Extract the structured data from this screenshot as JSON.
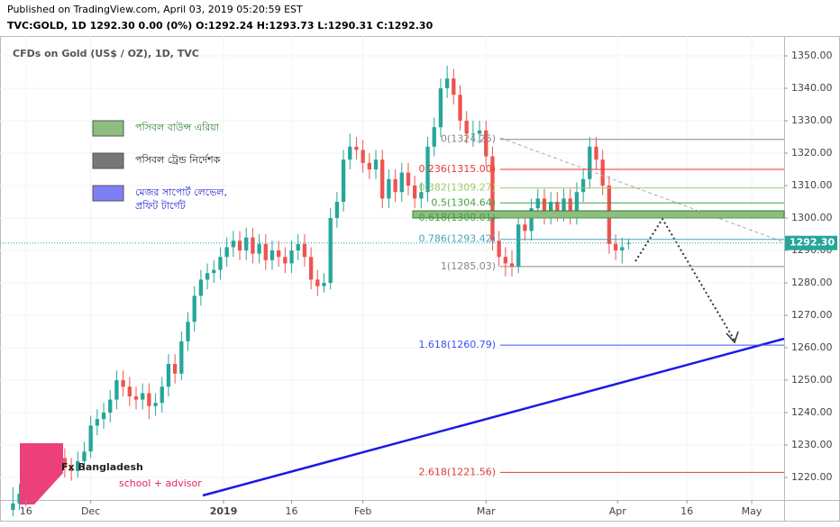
{
  "header": {
    "published": "Published on TradingView.com, April 03, 2019 05:20:59 EST",
    "quote": "TVC:GOLD, 1D  1292.30  0.00 (0%)  O:1292.24  H:1293.73  L:1290.31  C:1292.30"
  },
  "chart_data": {
    "type": "candlestick",
    "title": "CFDs on Gold (US$ / OZ), 1D, TVC",
    "up_color": "#26a69a",
    "down_color": "#ef5350",
    "ohlc": [
      [
        1210,
        1217,
        1208,
        1212
      ],
      [
        1212,
        1218,
        1210,
        1215
      ],
      [
        1215,
        1218,
        1211,
        1214
      ],
      [
        1214,
        1223,
        1212,
        1220
      ],
      [
        1220,
        1225,
        1218,
        1222
      ],
      [
        1222,
        1225,
        1218,
        1221
      ],
      [
        1221,
        1227,
        1219,
        1224
      ],
      [
        1224,
        1229,
        1221,
        1226
      ],
      [
        1226,
        1229,
        1220,
        1223
      ],
      [
        1223,
        1226,
        1219,
        1222
      ],
      [
        1222,
        1228,
        1220,
        1225
      ],
      [
        1225,
        1231,
        1222,
        1228
      ],
      [
        1228,
        1239,
        1226,
        1236
      ],
      [
        1236,
        1241,
        1233,
        1238
      ],
      [
        1238,
        1243,
        1235,
        1240
      ],
      [
        1240,
        1247,
        1237,
        1244
      ],
      [
        1244,
        1253,
        1241,
        1250
      ],
      [
        1250,
        1253,
        1245,
        1248
      ],
      [
        1248,
        1251,
        1242,
        1245
      ],
      [
        1245,
        1248,
        1241,
        1244
      ],
      [
        1244,
        1249,
        1241,
        1246
      ],
      [
        1246,
        1249,
        1238,
        1242
      ],
      [
        1242,
        1246,
        1239,
        1243
      ],
      [
        1243,
        1251,
        1240,
        1248
      ],
      [
        1248,
        1258,
        1245,
        1255
      ],
      [
        1255,
        1258,
        1249,
        1252
      ],
      [
        1252,
        1265,
        1250,
        1262
      ],
      [
        1262,
        1271,
        1259,
        1268
      ],
      [
        1268,
        1279,
        1265,
        1276
      ],
      [
        1276,
        1284,
        1273,
        1281
      ],
      [
        1281,
        1286,
        1278,
        1283
      ],
      [
        1283,
        1287,
        1280,
        1284
      ],
      [
        1284,
        1291,
        1281,
        1288
      ],
      [
        1288,
        1294,
        1285,
        1291
      ],
      [
        1291,
        1296,
        1288,
        1293
      ],
      [
        1293,
        1296,
        1287,
        1290
      ],
      [
        1290,
        1297,
        1287,
        1294
      ],
      [
        1294,
        1297,
        1286,
        1289
      ],
      [
        1289,
        1295,
        1286,
        1292
      ],
      [
        1292,
        1295,
        1284,
        1287
      ],
      [
        1287,
        1293,
        1284,
        1290
      ],
      [
        1290,
        1293,
        1285,
        1288
      ],
      [
        1288,
        1291,
        1283,
        1286
      ],
      [
        1286,
        1293,
        1283,
        1290
      ],
      [
        1290,
        1295,
        1287,
        1292
      ],
      [
        1292,
        1295,
        1285,
        1288
      ],
      [
        1288,
        1291,
        1278,
        1281
      ],
      [
        1281,
        1284,
        1276,
        1279
      ],
      [
        1279,
        1283,
        1277,
        1280
      ],
      [
        1280,
        1303,
        1278,
        1300
      ],
      [
        1300,
        1308,
        1297,
        1305
      ],
      [
        1305,
        1321,
        1302,
        1318
      ],
      [
        1318,
        1326,
        1315,
        1322
      ],
      [
        1322,
        1325,
        1318,
        1321
      ],
      [
        1321,
        1324,
        1314,
        1317
      ],
      [
        1317,
        1320,
        1312,
        1315
      ],
      [
        1315,
        1321,
        1312,
        1318
      ],
      [
        1318,
        1321,
        1303,
        1306
      ],
      [
        1306,
        1315,
        1303,
        1312
      ],
      [
        1312,
        1315,
        1305,
        1308
      ],
      [
        1308,
        1317,
        1305,
        1314
      ],
      [
        1314,
        1317,
        1307,
        1310
      ],
      [
        1310,
        1313,
        1303,
        1306
      ],
      [
        1306,
        1311,
        1303,
        1308
      ],
      [
        1308,
        1325,
        1305,
        1322
      ],
      [
        1322,
        1331,
        1319,
        1328
      ],
      [
        1328,
        1343,
        1325,
        1340
      ],
      [
        1340,
        1347,
        1337,
        1343
      ],
      [
        1343,
        1346,
        1335,
        1338
      ],
      [
        1338,
        1341,
        1327,
        1330
      ],
      [
        1330,
        1333,
        1323,
        1326
      ],
      [
        1326,
        1330,
        1322,
        1326
      ],
      [
        1326,
        1330,
        1323,
        1327
      ],
      [
        1327,
        1330,
        1316,
        1319
      ],
      [
        1319,
        1322,
        1290,
        1293
      ],
      [
        1293,
        1296,
        1285,
        1288
      ],
      [
        1288,
        1291,
        1282,
        1286
      ],
      [
        1286,
        1290,
        1282,
        1285
      ],
      [
        1285,
        1301,
        1283,
        1298
      ],
      [
        1298,
        1301,
        1293,
        1296
      ],
      [
        1296,
        1306,
        1293,
        1303
      ],
      [
        1303,
        1309,
        1300,
        1306
      ],
      [
        1306,
        1309,
        1298,
        1301
      ],
      [
        1301,
        1308,
        1298,
        1305
      ],
      [
        1305,
        1308,
        1299,
        1302
      ],
      [
        1302,
        1309,
        1299,
        1306
      ],
      [
        1306,
        1309,
        1298,
        1301
      ],
      [
        1301,
        1311,
        1298,
        1308
      ],
      [
        1308,
        1315,
        1305,
        1312
      ],
      [
        1312,
        1325,
        1309,
        1322
      ],
      [
        1322,
        1325,
        1315,
        1318
      ],
      [
        1318,
        1321,
        1307,
        1310
      ],
      [
        1310,
        1313,
        1289,
        1292
      ],
      [
        1292,
        1295,
        1287,
        1290
      ],
      [
        1290,
        1294,
        1286,
        1291
      ],
      [
        1292.24,
        1293.73,
        1290.31,
        1292.3
      ]
    ],
    "xlim": [
      -2,
      119
    ],
    "ylim": [
      1213.06,
      1356.11
    ],
    "xticks": [
      {
        "value": 2,
        "label": "16"
      },
      {
        "value": 12,
        "label": "Dec"
      },
      {
        "value": 32.5,
        "label": "2019"
      },
      {
        "value": 43,
        "label": "16"
      },
      {
        "value": 54,
        "label": "Feb"
      },
      {
        "value": 73,
        "label": "Mar"
      },
      {
        "value": 93.3,
        "label": "Apr"
      },
      {
        "value": 104,
        "label": "16"
      },
      {
        "value": 114,
        "label": "May"
      }
    ],
    "yticks": [
      {
        "value": 1220,
        "label": "1220.00"
      },
      {
        "value": 1230,
        "label": "1230.00"
      },
      {
        "value": 1240,
        "label": "1240.00"
      },
      {
        "value": 1250,
        "label": "1250.00"
      },
      {
        "value": 1260,
        "label": "1260.00"
      },
      {
        "value": 1270,
        "label": "1270.00"
      },
      {
        "value": 1280,
        "label": "1280.00"
      },
      {
        "value": 1290,
        "label": "1290.00"
      },
      {
        "value": 1300,
        "label": "1300.00"
      },
      {
        "value": 1310,
        "label": "1310.00"
      },
      {
        "value": 1320,
        "label": "1320.00"
      },
      {
        "value": 1330,
        "label": "1330.00"
      },
      {
        "value": 1340,
        "label": "1340.00"
      },
      {
        "value": 1350,
        "label": "1350.00"
      }
    ],
    "last_price": {
      "value": 1292.3,
      "label": "1292.30"
    },
    "fib_levels": [
      {
        "value": 1324.25,
        "label": "0(1324.25)",
        "color": "#888888"
      },
      {
        "value": 1315,
        "label": "0.236(1315.00)",
        "color": "#e53935"
      },
      {
        "value": 1309.27,
        "label": "0.382(1309.27)",
        "color": "#9ccc65"
      },
      {
        "value": 1304.64,
        "label": "0.5(1304.64)",
        "color": "#43a047"
      },
      {
        "value": 1300.01,
        "label": "0.618(1300.01)",
        "color": "#43a047"
      },
      {
        "value": 1293.42,
        "label": "0.786(1293.42)",
        "color": "#4ba3b8"
      },
      {
        "value": 1285.03,
        "label": "1(1285.03)",
        "color": "#888888"
      },
      {
        "value": 1260.79,
        "label": "1.618(1260.79)",
        "color": "#3f51f5"
      },
      {
        "value": 1221.56,
        "label": "2.618(1221.56)",
        "color": "#e53935"
      }
    ],
    "legend": [
      {
        "label": "পসিবল বাউন্স এরিয়া",
        "color": "#8fbc7f",
        "text_color": "#2e7d32"
      },
      {
        "label": "পসিবল ট্রেন্ড নির্দেশক",
        "color": "#777777",
        "text_color": "#111111"
      },
      {
        "label": "মেজর সাপোর্ট লেভেল,",
        "label2": "প্রফিট টার্গেট",
        "color": "#7f7ff5",
        "text_color": "#1a1ad0"
      }
    ]
  },
  "logo": {
    "name": "Fx Bangladesh",
    "tagline": "school + advisor"
  }
}
